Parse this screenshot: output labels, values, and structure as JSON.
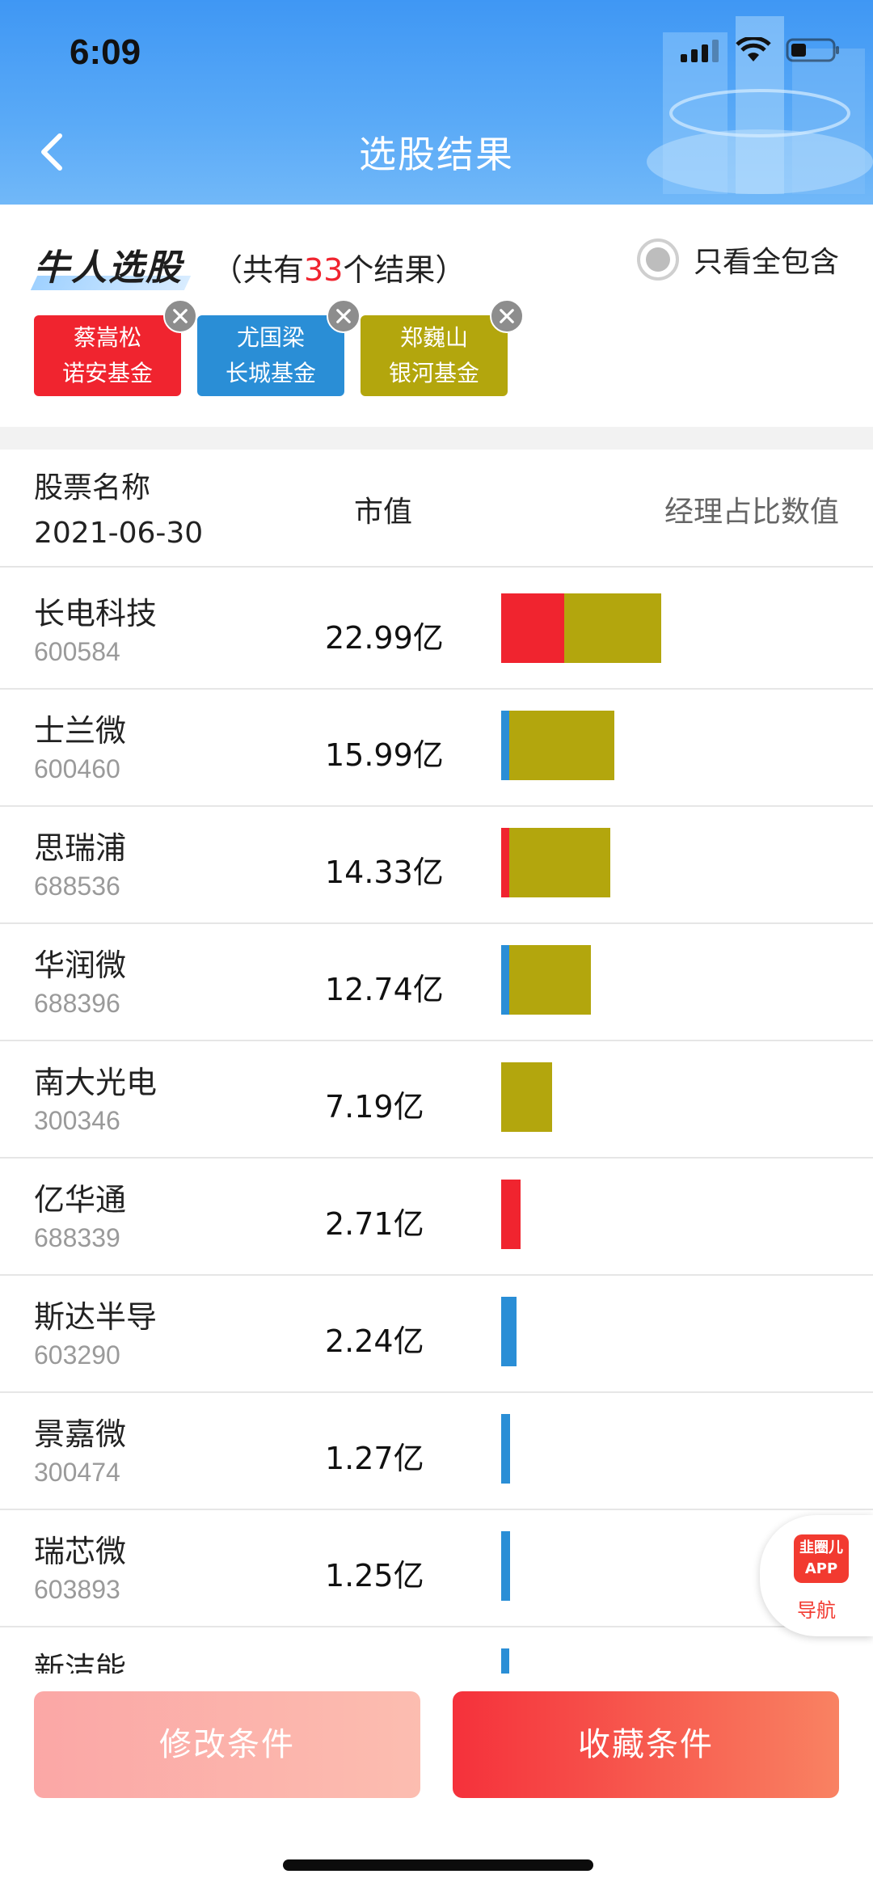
{
  "status_bar": {
    "time": "6:09"
  },
  "header": {
    "title": "选股结果"
  },
  "summary": {
    "logo_text": "牛人选股",
    "count_prefix": "（共有",
    "count_value": "33",
    "count_suffix": "个结果）",
    "toggle_label": "只看全包含"
  },
  "managers": [
    {
      "name": "蔡嵩松",
      "fund": "诺安基金",
      "color": "#f0242f"
    },
    {
      "name": "尤国梁",
      "fund": "长城基金",
      "color": "#2a8ed6"
    },
    {
      "name": "郑巍山",
      "fund": "银河基金",
      "color": "#b3a60d"
    }
  ],
  "columns": {
    "name_label": "股票名称",
    "date": "2021-06-30",
    "market_cap_label": "市值",
    "ratio_label": "经理占比数值"
  },
  "stocks": [
    {
      "name": "长电科技",
      "code": "600584",
      "market_cap": "22.99亿",
      "ratio": [
        7.8,
        0,
        12.0
      ]
    },
    {
      "name": "士兰微",
      "code": "600460",
      "market_cap": "15.99亿",
      "ratio": [
        0,
        1.0,
        13.0
      ]
    },
    {
      "name": "思瑞浦",
      "code": "688536",
      "market_cap": "14.33亿",
      "ratio": [
        1.0,
        0,
        12.5
      ]
    },
    {
      "name": "华润微",
      "code": "688396",
      "market_cap": "12.74亿",
      "ratio": [
        0,
        1.0,
        10.1
      ]
    },
    {
      "name": "南大光电",
      "code": "300346",
      "market_cap": "7.19亿",
      "ratio": [
        0,
        0,
        6.3
      ]
    },
    {
      "name": "亿华通",
      "code": "688339",
      "market_cap": "2.71亿",
      "ratio": [
        2.4,
        0,
        0
      ]
    },
    {
      "name": "斯达半导",
      "code": "603290",
      "market_cap": "2.24亿",
      "ratio": [
        0,
        1.9,
        0
      ]
    },
    {
      "name": "景嘉微",
      "code": "300474",
      "market_cap": "1.27亿",
      "ratio": [
        0,
        1.1,
        0
      ]
    },
    {
      "name": "瑞芯微",
      "code": "603893",
      "market_cap": "1.25亿",
      "ratio": [
        0,
        1.1,
        0
      ]
    },
    {
      "name": "新洁能",
      "code": "",
      "market_cap": "",
      "ratio": [
        0,
        1.0,
        0
      ]
    }
  ],
  "nav_fab": {
    "icon_text": "韭圈儿 APP",
    "label": "导航"
  },
  "actions": {
    "modify_label": "修改条件",
    "save_label": "收藏条件"
  }
}
